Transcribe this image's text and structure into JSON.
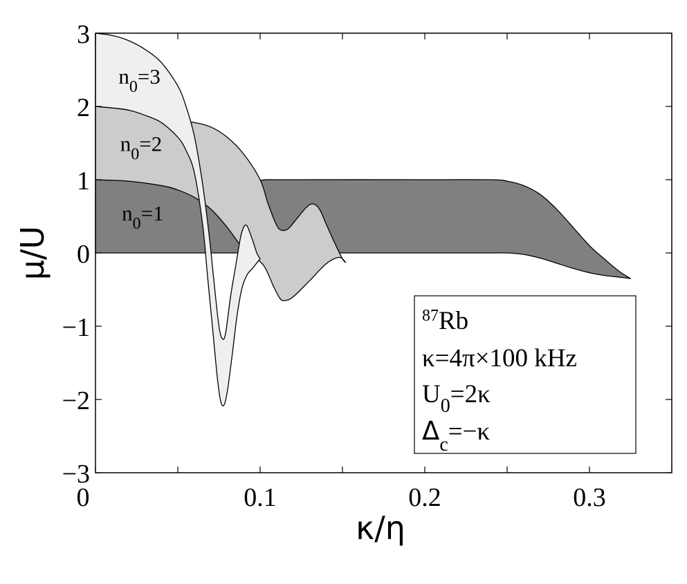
{
  "chart_data": {
    "type": "area",
    "xlabel": "κ/η",
    "ylabel": "μ/U",
    "xlim": [
      0,
      0.35
    ],
    "ylim": [
      -3,
      3
    ],
    "x_ticks": [
      "0",
      "0.1",
      "0.2",
      "0.3"
    ],
    "x_tick_values": [
      0,
      0.1,
      0.2,
      0.3
    ],
    "y_ticks": [
      "3",
      "2",
      "1",
      "0",
      "−1",
      "−2",
      "−3"
    ],
    "y_tick_values": [
      3,
      2,
      1,
      0,
      -1,
      -2,
      -3
    ],
    "grid": false,
    "regions": [
      {
        "label": {
          "main": "n",
          "sub": "0",
          "rest": "=1"
        },
        "label_pos": [
          0.011,
          0.5
        ],
        "fill": "#808080",
        "upper": [
          [
            0,
            1.0
          ],
          [
            0.02,
            0.98
          ],
          [
            0.04,
            0.92
          ],
          [
            0.05,
            0.86
          ],
          [
            0.06,
            0.78
          ],
          [
            0.07,
            0.66
          ],
          [
            0.08,
            0.5
          ],
          [
            0.085,
            0.42
          ],
          [
            0.09,
            0.44
          ],
          [
            0.095,
            0.7
          ],
          [
            0.098,
            0.9
          ],
          [
            0.1,
            0.99
          ],
          [
            0.12,
            1.0
          ],
          [
            0.2,
            1.0
          ],
          [
            0.24,
            1.0
          ],
          [
            0.25,
            0.98
          ],
          [
            0.26,
            0.92
          ],
          [
            0.27,
            0.8
          ],
          [
            0.28,
            0.6
          ],
          [
            0.29,
            0.35
          ],
          [
            0.3,
            0.1
          ],
          [
            0.31,
            -0.1
          ],
          [
            0.318,
            -0.25
          ],
          [
            0.325,
            -0.35
          ]
        ],
        "lower": [
          [
            0,
            0
          ],
          [
            0.1,
            0
          ],
          [
            0.2,
            0
          ],
          [
            0.24,
            0
          ],
          [
            0.25,
            0.0
          ],
          [
            0.26,
            -0.02
          ],
          [
            0.27,
            -0.07
          ],
          [
            0.28,
            -0.14
          ],
          [
            0.29,
            -0.21
          ],
          [
            0.3,
            -0.27
          ],
          [
            0.31,
            -0.31
          ],
          [
            0.318,
            -0.33
          ],
          [
            0.325,
            -0.35
          ]
        ]
      },
      {
        "label": {
          "main": "n",
          "sub": "0",
          "rest": "=2"
        },
        "label_pos": [
          0.01,
          1.45
        ],
        "fill": "#cccccc",
        "upper": [
          [
            0,
            2.0
          ],
          [
            0.01,
            1.98
          ],
          [
            0.02,
            1.95
          ],
          [
            0.03,
            1.9
          ],
          [
            0.04,
            1.84
          ],
          [
            0.05,
            1.8
          ],
          [
            0.06,
            1.78
          ],
          [
            0.07,
            1.72
          ],
          [
            0.08,
            1.58
          ],
          [
            0.09,
            1.35
          ],
          [
            0.1,
            1.0
          ],
          [
            0.105,
            0.66
          ],
          [
            0.11,
            0.38
          ],
          [
            0.113,
            0.31
          ],
          [
            0.117,
            0.33
          ],
          [
            0.122,
            0.46
          ],
          [
            0.128,
            0.62
          ],
          [
            0.132,
            0.67
          ],
          [
            0.136,
            0.6
          ],
          [
            0.14,
            0.4
          ],
          [
            0.145,
            0.15
          ],
          [
            0.15,
            -0.08
          ],
          [
            0.152,
            -0.13
          ]
        ],
        "lower": [
          [
            0,
            1.0
          ],
          [
            0.02,
            0.98
          ],
          [
            0.04,
            0.92
          ],
          [
            0.05,
            0.86
          ],
          [
            0.06,
            0.76
          ],
          [
            0.07,
            0.6
          ],
          [
            0.08,
            0.35
          ],
          [
            0.09,
            0.05
          ],
          [
            0.098,
            -0.08
          ],
          [
            0.103,
            -0.2
          ],
          [
            0.108,
            -0.45
          ],
          [
            0.112,
            -0.62
          ],
          [
            0.115,
            -0.65
          ],
          [
            0.12,
            -0.6
          ],
          [
            0.13,
            -0.38
          ],
          [
            0.14,
            -0.15
          ],
          [
            0.148,
            -0.06
          ],
          [
            0.152,
            -0.13
          ]
        ]
      },
      {
        "label": {
          "main": "n",
          "sub": "0",
          "rest": "=3"
        },
        "label_pos": [
          0.009,
          2.37
        ],
        "fill": "#efefef",
        "upper": [
          [
            0,
            3.0
          ],
          [
            0.01,
            2.97
          ],
          [
            0.02,
            2.9
          ],
          [
            0.03,
            2.78
          ],
          [
            0.04,
            2.6
          ],
          [
            0.05,
            2.28
          ],
          [
            0.055,
            2.0
          ],
          [
            0.06,
            1.6
          ],
          [
            0.065,
            0.95
          ],
          [
            0.069,
            0.25
          ],
          [
            0.072,
            -0.4
          ],
          [
            0.075,
            -1.0
          ],
          [
            0.077,
            -1.17
          ],
          [
            0.079,
            -1.1
          ],
          [
            0.082,
            -0.6
          ],
          [
            0.085,
            -0.2
          ],
          [
            0.088,
            0.2
          ],
          [
            0.09,
            0.35
          ],
          [
            0.092,
            0.37
          ],
          [
            0.095,
            0.2
          ],
          [
            0.098,
            0.0
          ],
          [
            0.1,
            -0.08
          ]
        ],
        "lower": [
          [
            0,
            2.0
          ],
          [
            0.01,
            1.98
          ],
          [
            0.02,
            1.95
          ],
          [
            0.03,
            1.88
          ],
          [
            0.04,
            1.78
          ],
          [
            0.05,
            1.58
          ],
          [
            0.055,
            1.4
          ],
          [
            0.06,
            1.1
          ],
          [
            0.065,
            0.4
          ],
          [
            0.068,
            -0.3
          ],
          [
            0.071,
            -1.0
          ],
          [
            0.074,
            -1.7
          ],
          [
            0.076,
            -2.02
          ],
          [
            0.078,
            -2.08
          ],
          [
            0.08,
            -1.9
          ],
          [
            0.083,
            -1.4
          ],
          [
            0.086,
            -0.85
          ],
          [
            0.089,
            -0.48
          ],
          [
            0.092,
            -0.3
          ],
          [
            0.095,
            -0.22
          ],
          [
            0.1,
            -0.08
          ]
        ]
      }
    ],
    "legend": {
      "placement": "lower-right",
      "line1": {
        "sup": "87",
        "text": "Rb"
      },
      "line2": "κ=4π×100 kHz",
      "line3": {
        "main": "U",
        "sub": "0",
        "rest": "=2κ"
      },
      "line4": {
        "main": "Δ",
        "sub": "c",
        "rest": "=−κ"
      }
    }
  }
}
